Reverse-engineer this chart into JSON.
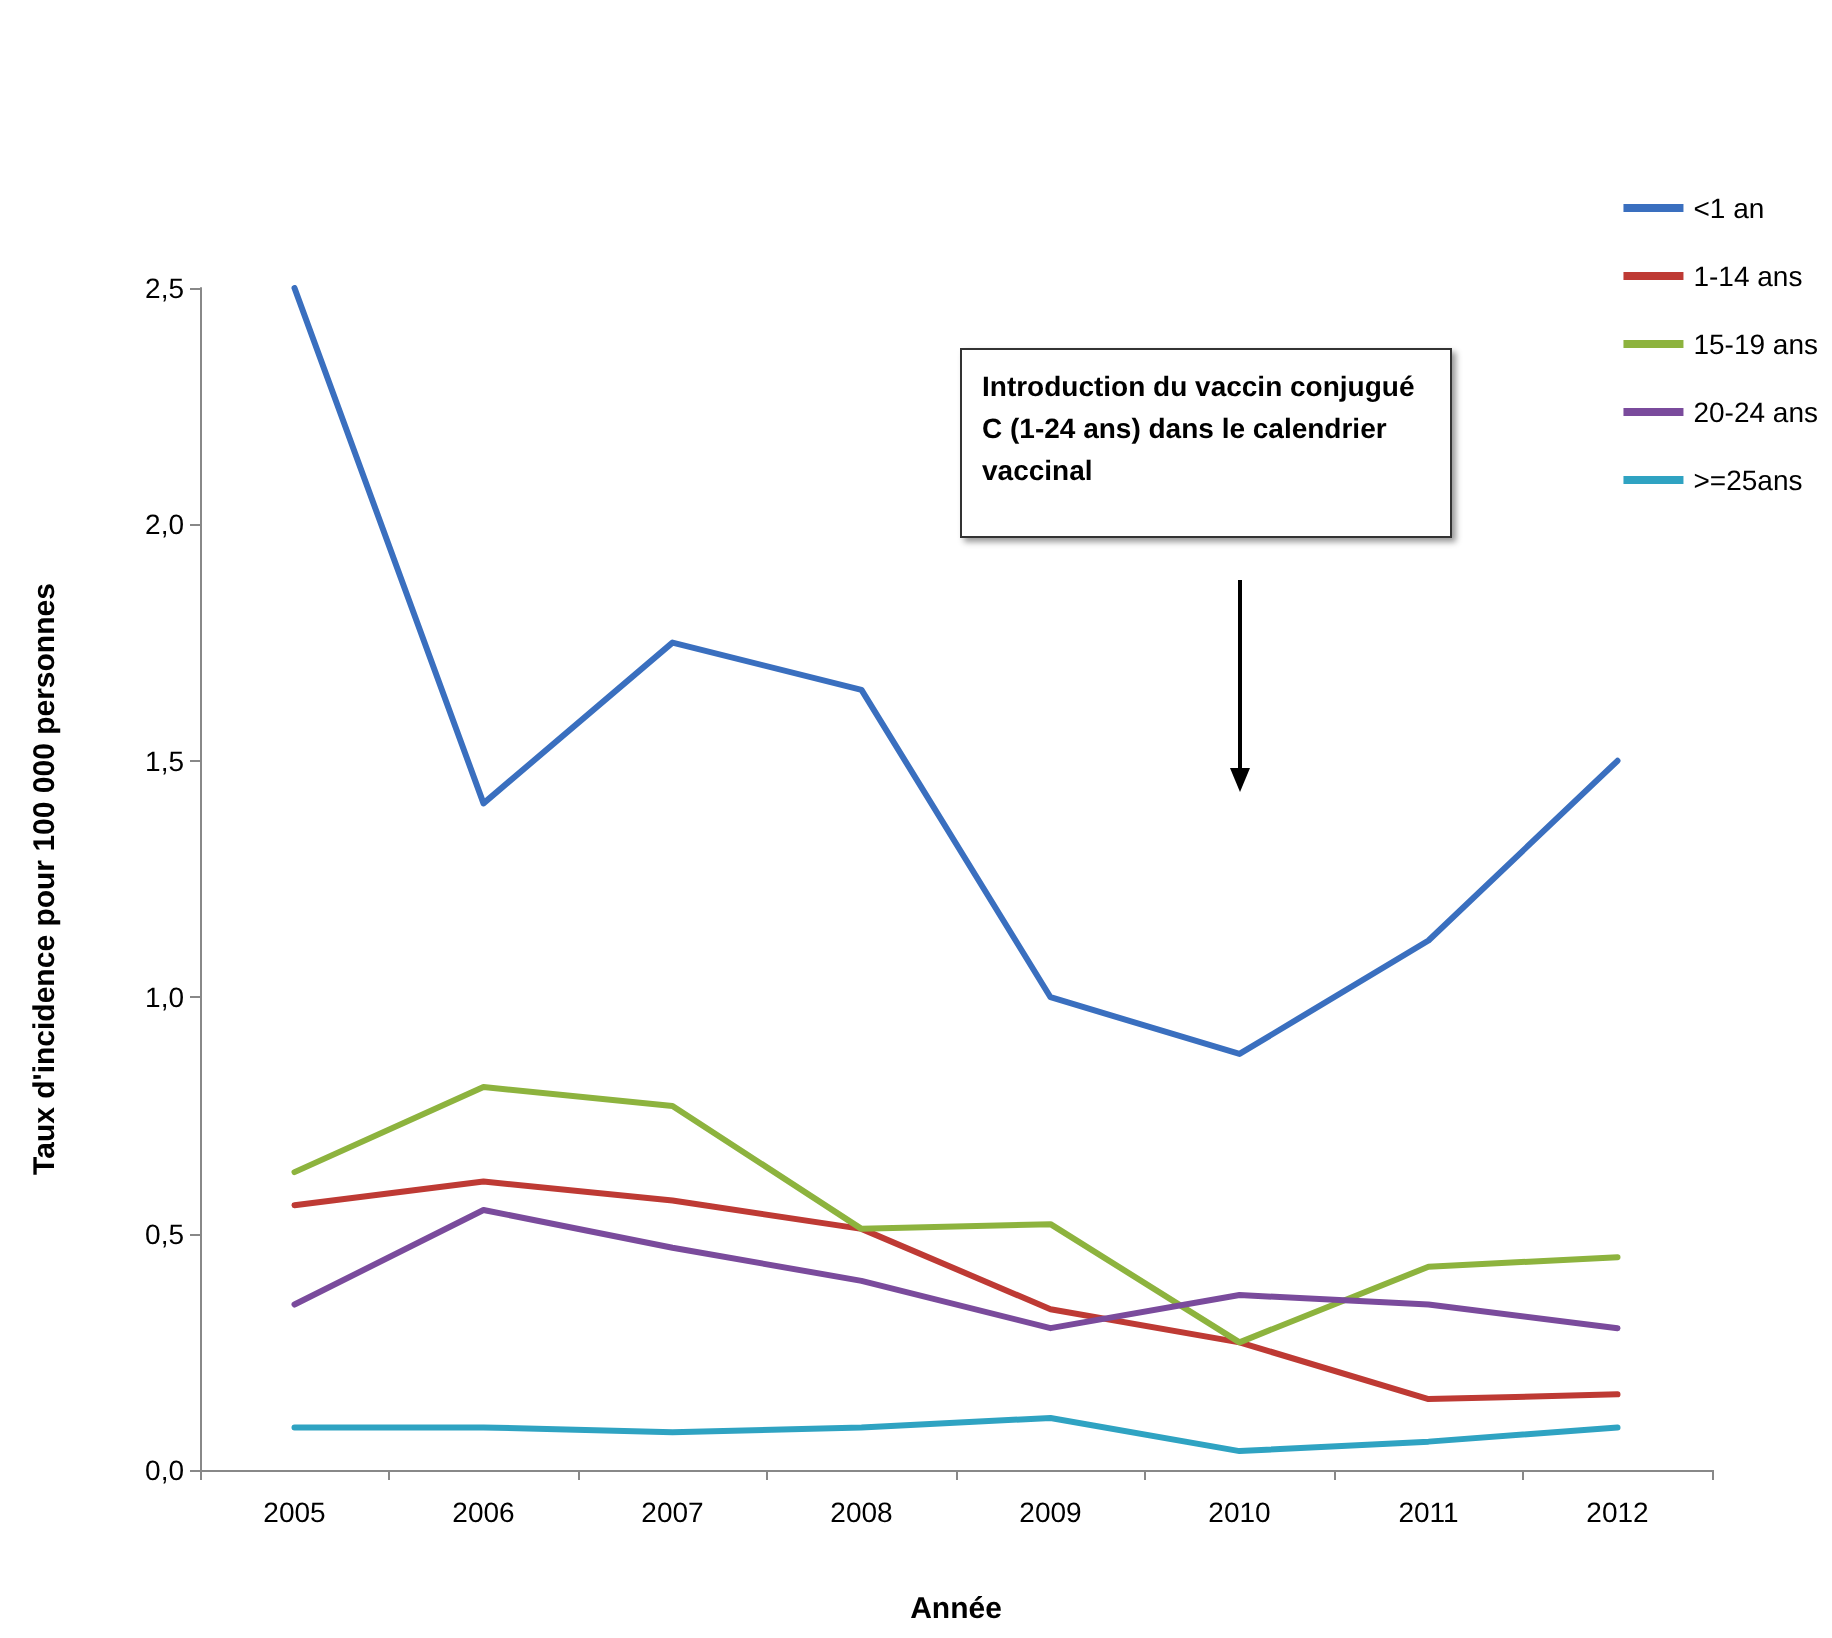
{
  "chart_data": {
    "type": "line",
    "xlabel": "Année",
    "ylabel": "Taux d'incidence pour 100 000 personnes",
    "categories": [
      "2005",
      "2006",
      "2007",
      "2008",
      "2009",
      "2010",
      "2011",
      "2012"
    ],
    "series": [
      {
        "name": "<1 an",
        "color": "#3a6fbf",
        "values": [
          2.5,
          1.41,
          1.75,
          1.65,
          1.0,
          0.88,
          1.12,
          1.5
        ]
      },
      {
        "name": "1-14 ans",
        "color": "#be3a34",
        "values": [
          0.56,
          0.61,
          0.57,
          0.51,
          0.34,
          0.27,
          0.15,
          0.16
        ]
      },
      {
        "name": "15-19 ans",
        "color": "#8db33e",
        "values": [
          0.63,
          0.81,
          0.77,
          0.51,
          0.52,
          0.27,
          0.43,
          0.45
        ]
      },
      {
        "name": "20-24 ans",
        "color": "#7a4b9c",
        "values": [
          0.35,
          0.55,
          0.47,
          0.4,
          0.3,
          0.37,
          0.35,
          0.3
        ]
      },
      {
        "name": ">=25ans",
        "color": "#2fa3c2",
        "values": [
          0.09,
          0.09,
          0.08,
          0.09,
          0.11,
          0.04,
          0.06,
          0.09
        ]
      }
    ],
    "ylim": [
      0,
      2.5
    ],
    "yticks": [
      {
        "value": 0,
        "label": "0,0"
      },
      {
        "value": 0.5,
        "label": "0,5"
      },
      {
        "value": 1,
        "label": "1,0"
      },
      {
        "value": 1.5,
        "label": "1,5"
      },
      {
        "value": 2,
        "label": "2,0"
      },
      {
        "value": 2.5,
        "label": "2,5"
      }
    ],
    "annotations": [
      "Introduction du vaccin conjugué  C (1-24 ans) dans le calendrier vaccinal"
    ],
    "grid": false,
    "legend": "top right",
    "marker": "none",
    "line_style": "solid"
  }
}
